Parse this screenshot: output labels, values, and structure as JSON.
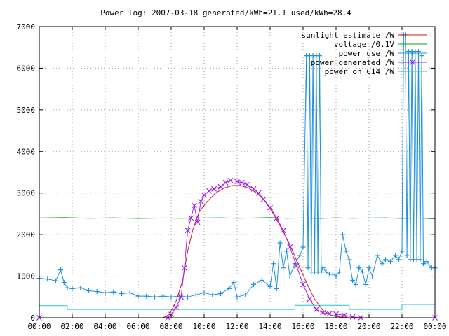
{
  "chart_data": {
    "type": "line",
    "title": "Power log: 2007-03-18 generated/kWh=21.1 used/kWh=28.4",
    "xlabel": "",
    "ylabel": "",
    "x_ticks": [
      "00:00",
      "02:00",
      "04:00",
      "06:00",
      "08:00",
      "10:00",
      "12:00",
      "14:00",
      "16:00",
      "18:00",
      "20:00",
      "22:00",
      "00:00"
    ],
    "y_ticks": [
      "0",
      "1000",
      "2000",
      "3000",
      "4000",
      "5000",
      "6000",
      "7000"
    ],
    "xlim": [
      0,
      24
    ],
    "ylim": [
      0,
      7000
    ],
    "grid": true,
    "legend_position": "top-right",
    "series": [
      {
        "name": "sunlight estimate /W",
        "color": "#e01010",
        "style": "line",
        "points": [
          [
            0,
            0
          ],
          [
            7.5,
            0
          ],
          [
            7.9,
            80
          ],
          [
            8.3,
            400
          ],
          [
            8.7,
            900
          ],
          [
            9.0,
            1600
          ],
          [
            9.3,
            2100
          ],
          [
            9.7,
            2550
          ],
          [
            10.2,
            2800
          ],
          [
            10.7,
            3000
          ],
          [
            11.2,
            3120
          ],
          [
            11.7,
            3180
          ],
          [
            12.2,
            3180
          ],
          [
            12.7,
            3120
          ],
          [
            13.2,
            3000
          ],
          [
            13.7,
            2800
          ],
          [
            14.2,
            2500
          ],
          [
            14.7,
            2150
          ],
          [
            15.2,
            1750
          ],
          [
            15.7,
            1300
          ],
          [
            16.2,
            850
          ],
          [
            16.7,
            450
          ],
          [
            17.2,
            180
          ],
          [
            17.7,
            60
          ],
          [
            18.2,
            20
          ],
          [
            18.8,
            0
          ],
          [
            24,
            0
          ]
        ]
      },
      {
        "name": "voltage /0.1V",
        "color": "#10a010",
        "style": "line",
        "points": [
          [
            0,
            2400
          ],
          [
            1.5,
            2410
          ],
          [
            3,
            2395
          ],
          [
            4.5,
            2405
          ],
          [
            6,
            2390
          ],
          [
            7.5,
            2400
          ],
          [
            8.5,
            2395
          ],
          [
            10,
            2400
          ],
          [
            11,
            2405
          ],
          [
            12,
            2395
          ],
          [
            13,
            2400
          ],
          [
            14,
            2410
          ],
          [
            15,
            2395
          ],
          [
            16,
            2400
          ],
          [
            17,
            2390
          ],
          [
            18,
            2405
          ],
          [
            19,
            2395
          ],
          [
            20,
            2400
          ],
          [
            21,
            2405
          ],
          [
            22,
            2390
          ],
          [
            23,
            2400
          ],
          [
            24,
            2380
          ]
        ]
      },
      {
        "name": "power use /W",
        "color": "#2090e0",
        "style": "linespoints-plus",
        "points": [
          [
            0,
            950
          ],
          [
            0.5,
            930
          ],
          [
            1,
            890
          ],
          [
            1.3,
            1150
          ],
          [
            1.5,
            850
          ],
          [
            1.7,
            720
          ],
          [
            2,
            700
          ],
          [
            2.5,
            720
          ],
          [
            3,
            650
          ],
          [
            3.5,
            630
          ],
          [
            4,
            600
          ],
          [
            4.5,
            620
          ],
          [
            5,
            580
          ],
          [
            5.5,
            600
          ],
          [
            6,
            520
          ],
          [
            6.5,
            520
          ],
          [
            7,
            500
          ],
          [
            7.5,
            520
          ],
          [
            8,
            500
          ],
          [
            8.5,
            520
          ],
          [
            9,
            500
          ],
          [
            9.5,
            550
          ],
          [
            10,
            600
          ],
          [
            10.5,
            550
          ],
          [
            11,
            580
          ],
          [
            11.5,
            700
          ],
          [
            11.8,
            850
          ],
          [
            12,
            500
          ],
          [
            12.5,
            550
          ],
          [
            13,
            800
          ],
          [
            13.5,
            900
          ],
          [
            14,
            750
          ],
          [
            14.2,
            1300
          ],
          [
            14.4,
            700
          ],
          [
            14.6,
            1800
          ],
          [
            14.8,
            1200
          ],
          [
            15,
            1600
          ],
          [
            15.2,
            1000
          ],
          [
            15.5,
            1300
          ],
          [
            15.8,
            1500
          ],
          [
            16,
            1700
          ],
          [
            16.2,
            6300
          ],
          [
            16.3,
            1200
          ],
          [
            16.4,
            6300
          ],
          [
            16.5,
            1100
          ],
          [
            16.6,
            6300
          ],
          [
            16.7,
            1100
          ],
          [
            16.8,
            6300
          ],
          [
            16.9,
            1100
          ],
          [
            17,
            6300
          ],
          [
            17.1,
            1100
          ],
          [
            17.2,
            1200
          ],
          [
            17.4,
            1100
          ],
          [
            17.6,
            1050
          ],
          [
            17.8,
            1050
          ],
          [
            18,
            1000
          ],
          [
            18.2,
            1100
          ],
          [
            18.4,
            2000
          ],
          [
            18.6,
            1600
          ],
          [
            18.8,
            1400
          ],
          [
            19,
            900
          ],
          [
            19.2,
            800
          ],
          [
            19.4,
            1200
          ],
          [
            19.6,
            1100
          ],
          [
            19.8,
            800
          ],
          [
            20,
            1200
          ],
          [
            20.2,
            1000
          ],
          [
            20.5,
            1500
          ],
          [
            20.8,
            1300
          ],
          [
            21,
            1400
          ],
          [
            21.3,
            1350
          ],
          [
            21.6,
            1500
          ],
          [
            21.8,
            1400
          ],
          [
            22,
            1600
          ],
          [
            22.1,
            6800
          ],
          [
            22.2,
            6800
          ],
          [
            22.3,
            1500
          ],
          [
            22.4,
            6400
          ],
          [
            22.5,
            1400
          ],
          [
            22.6,
            6400
          ],
          [
            22.7,
            1400
          ],
          [
            22.8,
            6400
          ],
          [
            22.9,
            1400
          ],
          [
            23,
            6400
          ],
          [
            23.1,
            1400
          ],
          [
            23.2,
            6300
          ],
          [
            23.3,
            1300
          ],
          [
            23.5,
            1350
          ],
          [
            23.8,
            1200
          ],
          [
            24,
            1200
          ]
        ]
      },
      {
        "name": "power generated /W",
        "color": "#a020f0",
        "style": "linespoints-cross",
        "points": [
          [
            0,
            0
          ],
          [
            7.8,
            0
          ],
          [
            8.0,
            80
          ],
          [
            8.3,
            250
          ],
          [
            8.6,
            500
          ],
          [
            8.8,
            1200
          ],
          [
            9.0,
            2100
          ],
          [
            9.2,
            2400
          ],
          [
            9.4,
            2700
          ],
          [
            9.6,
            2300
          ],
          [
            9.8,
            2800
          ],
          [
            10.0,
            2950
          ],
          [
            10.3,
            3050
          ],
          [
            10.6,
            3100
          ],
          [
            11.0,
            3150
          ],
          [
            11.3,
            3250
          ],
          [
            11.6,
            3300
          ],
          [
            12.0,
            3280
          ],
          [
            12.3,
            3250
          ],
          [
            12.6,
            3200
          ],
          [
            13.0,
            3100
          ],
          [
            13.3,
            3000
          ],
          [
            13.6,
            2850
          ],
          [
            14.0,
            2650
          ],
          [
            14.4,
            2400
          ],
          [
            14.8,
            2100
          ],
          [
            15.2,
            1700
          ],
          [
            15.6,
            1250
          ],
          [
            16.0,
            800
          ],
          [
            16.4,
            450
          ],
          [
            16.8,
            200
          ],
          [
            17.2,
            120
          ],
          [
            17.6,
            100
          ],
          [
            18.0,
            90
          ],
          [
            18.5,
            60
          ],
          [
            19.0,
            20
          ],
          [
            19.5,
            0
          ],
          [
            24,
            0
          ]
        ]
      },
      {
        "name": "power on C14 /W",
        "color": "#20c8d0",
        "style": "line",
        "points": [
          [
            0,
            290
          ],
          [
            1.7,
            290
          ],
          [
            1.7,
            200
          ],
          [
            15.5,
            200
          ],
          [
            15.5,
            300
          ],
          [
            18.8,
            300
          ],
          [
            18.8,
            200
          ],
          [
            22,
            200
          ],
          [
            22,
            320
          ],
          [
            24,
            320
          ]
        ]
      }
    ]
  }
}
